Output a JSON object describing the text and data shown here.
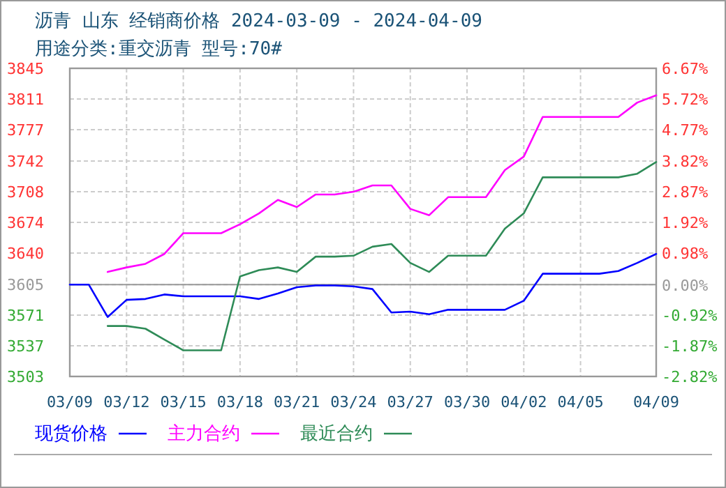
{
  "chart_data": {
    "type": "line",
    "title": "沥青  山东 经销商价格 2024-03-09 - 2024-04-09",
    "subtitle": "用途分类:重交沥青 型号:70#",
    "x": [
      "2024-03-09",
      "2024-03-10",
      "2024-03-11",
      "2024-03-12",
      "2024-03-13",
      "2024-03-14",
      "2024-03-15",
      "2024-03-16",
      "2024-03-17",
      "2024-03-18",
      "2024-03-19",
      "2024-03-20",
      "2024-03-21",
      "2024-03-22",
      "2024-03-23",
      "2024-03-24",
      "2024-03-25",
      "2024-03-26",
      "2024-03-27",
      "2024-03-28",
      "2024-03-29",
      "2024-03-30",
      "2024-03-31",
      "2024-04-01",
      "2024-04-02",
      "2024-04-03",
      "2024-04-04",
      "2024-04-05",
      "2024-04-06",
      "2024-04-07",
      "2024-04-08",
      "2024-04-09"
    ],
    "series": [
      {
        "name": "现货价格",
        "color": "#0000ff",
        "values": [
          3605,
          3605,
          3569,
          3588,
          3589,
          3594,
          3592,
          3592,
          3592,
          3592,
          3589,
          3595,
          3602,
          3604,
          3604,
          3603,
          3600,
          3574,
          3575,
          3572,
          3577,
          3577,
          3577,
          3577,
          3587,
          3617,
          3617,
          3617,
          3617,
          3620,
          3629,
          3639
        ]
      },
      {
        "name": "主力合约",
        "color": "#ff00ff",
        "values": [
          null,
          null,
          3619,
          3624,
          3628,
          3639,
          3662,
          3662,
          3662,
          3672,
          3684,
          3699,
          3691,
          3705,
          3705,
          3708,
          3715,
          3715,
          3689,
          3682,
          3702,
          3702,
          3702,
          3732,
          3747,
          3791,
          3791,
          3791,
          3791,
          3791,
          3807,
          3815
        ]
      },
      {
        "name": "最近合约",
        "color": "#2e8b57",
        "values": [
          null,
          null,
          3559,
          3559,
          3556,
          3544,
          3532,
          3532,
          3532,
          3614,
          3621,
          3624,
          3619,
          3636,
          3636,
          3637,
          3647,
          3650,
          3629,
          3619,
          3637,
          3637,
          3637,
          3667,
          3684,
          3724,
          3724,
          3724,
          3724,
          3724,
          3728,
          3741
        ]
      }
    ],
    "xlim": [
      "2024-03-09",
      "2024-04-09"
    ],
    "xticks": [
      {
        "value": "2024-03-09",
        "label": "03/09"
      },
      {
        "value": "2024-03-12",
        "label": "03/12"
      },
      {
        "value": "2024-03-15",
        "label": "03/15"
      },
      {
        "value": "2024-03-18",
        "label": "03/18"
      },
      {
        "value": "2024-03-21",
        "label": "03/21"
      },
      {
        "value": "2024-03-24",
        "label": "03/24"
      },
      {
        "value": "2024-03-27",
        "label": "03/27"
      },
      {
        "value": "2024-03-30",
        "label": "03/30"
      },
      {
        "value": "2024-04-02",
        "label": "04/02"
      },
      {
        "value": "2024-04-05",
        "label": "04/05"
      },
      {
        "value": "2024-04-09",
        "label": "04/09"
      }
    ],
    "ylim": [
      3503,
      3845
    ],
    "yticks": [
      3503,
      3537,
      3571,
      3605,
      3640,
      3674,
      3708,
      3742,
      3777,
      3811,
      3845
    ],
    "y2lim": [
      -2.82,
      6.67
    ],
    "y2ticks": [
      {
        "value": -2.82,
        "label": "-2.82%"
      },
      {
        "value": -1.87,
        "label": "-1.87%"
      },
      {
        "value": -0.92,
        "label": "-0.92%"
      },
      {
        "value": 0,
        "label": "0.00%"
      },
      {
        "value": 0.98,
        "label": "0.98%"
      },
      {
        "value": 1.92,
        "label": "1.92%"
      },
      {
        "value": 2.87,
        "label": "2.87%"
      },
      {
        "value": 3.82,
        "label": "3.82%"
      },
      {
        "value": 4.77,
        "label": "4.77%"
      },
      {
        "value": 5.72,
        "label": "5.72%"
      },
      {
        "value": 6.67,
        "label": "6.67%"
      }
    ],
    "ref_lines": [
      {
        "axis": "y",
        "value": 3605,
        "color": "#999999"
      }
    ],
    "grid": true,
    "legend": "bottom"
  }
}
